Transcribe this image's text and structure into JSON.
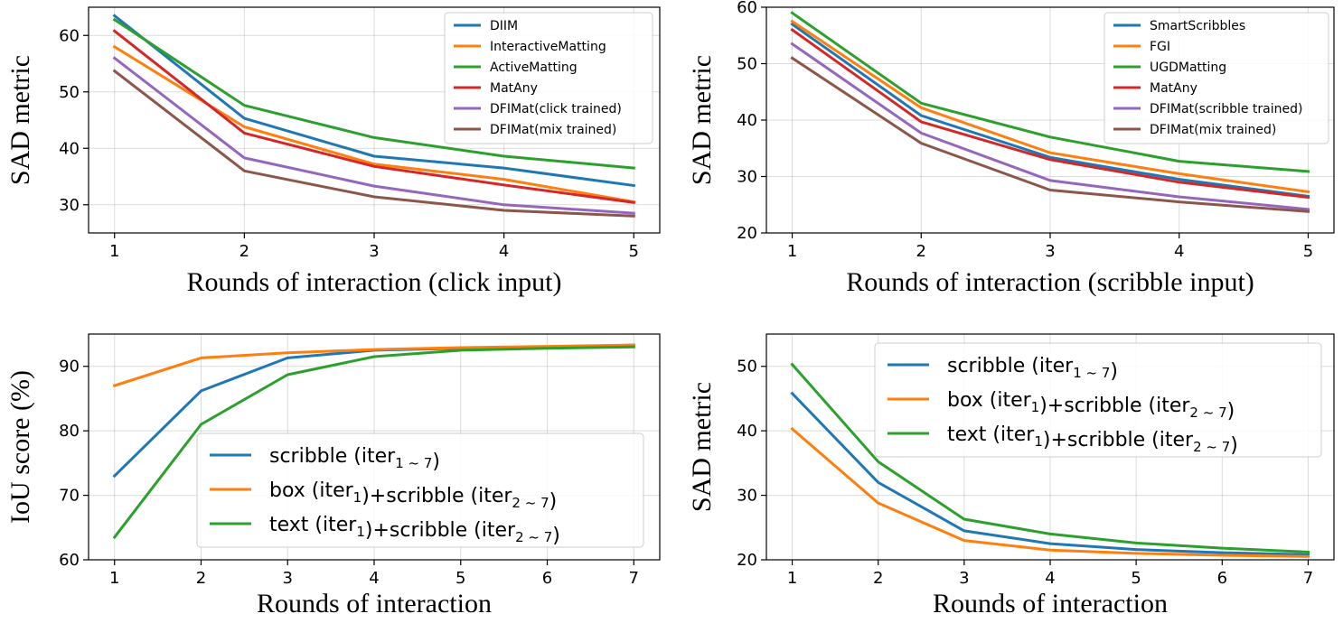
{
  "chart_data": [
    {
      "type": "line",
      "xlabel": "Rounds of interaction (click input)",
      "ylabel": "SAD metric",
      "x": [
        1,
        2,
        3,
        4,
        5
      ],
      "xlim": [
        0.8,
        5.2
      ],
      "ylim": [
        25,
        65
      ],
      "yticks": [
        30,
        40,
        50,
        60
      ],
      "grid": true,
      "legend_position": "top-right",
      "series": [
        {
          "name": "DIIM",
          "color": "#1f77b4",
          "values": [
            63.5,
            45.3,
            38.6,
            36.5,
            33.4
          ]
        },
        {
          "name": "InteractiveMatting",
          "color": "#ff7f0e",
          "values": [
            58.0,
            43.8,
            37.2,
            34.5,
            30.5
          ]
        },
        {
          "name": "ActiveMatting",
          "color": "#2ca02c",
          "values": [
            62.8,
            47.6,
            41.9,
            38.6,
            36.5
          ]
        },
        {
          "name": "MatAny",
          "color": "#d62728",
          "values": [
            60.8,
            42.7,
            36.8,
            33.5,
            30.4
          ]
        },
        {
          "name": "DFIMat(click trained)",
          "color": "#9467bd",
          "values": [
            56.0,
            38.3,
            33.3,
            30.0,
            28.5
          ]
        },
        {
          "name": "DFIMat(mix trained)",
          "color": "#8c564b",
          "values": [
            53.7,
            36.0,
            31.4,
            29.0,
            28.0
          ]
        }
      ]
    },
    {
      "type": "line",
      "xlabel": "Rounds of interaction (scribble input)",
      "ylabel": "SAD metric",
      "x": [
        1,
        2,
        3,
        4,
        5
      ],
      "xlim": [
        0.8,
        5.2
      ],
      "ylim": [
        20,
        60
      ],
      "yticks": [
        20,
        30,
        40,
        50,
        60
      ],
      "grid": true,
      "legend_position": "top-right",
      "series": [
        {
          "name": "SmartScribbles",
          "color": "#1f77b4",
          "values": [
            57.0,
            40.8,
            33.4,
            29.5,
            26.5
          ]
        },
        {
          "name": "FGI",
          "color": "#ff7f0e",
          "values": [
            57.5,
            42.2,
            34.2,
            30.5,
            27.3
          ]
        },
        {
          "name": "UGDMatting",
          "color": "#2ca02c",
          "values": [
            59.0,
            43.0,
            37.0,
            32.7,
            30.9
          ]
        },
        {
          "name": "MatAny",
          "color": "#d62728",
          "values": [
            56.0,
            39.7,
            33.0,
            29.0,
            26.3
          ]
        },
        {
          "name": "DFIMat(scribble trained)",
          "color": "#9467bd",
          "values": [
            53.5,
            37.7,
            29.3,
            26.4,
            24.2
          ]
        },
        {
          "name": "DFIMat(mix trained)",
          "color": "#8c564b",
          "values": [
            51.0,
            35.9,
            27.6,
            25.5,
            23.8
          ]
        }
      ]
    },
    {
      "type": "line",
      "xlabel": "Rounds of interaction",
      "ylabel": "IoU score (%)",
      "x": [
        1,
        2,
        3,
        4,
        5,
        6,
        7
      ],
      "xlim": [
        0.7,
        7.3
      ],
      "ylim": [
        60,
        95
      ],
      "yticks": [
        60,
        70,
        80,
        90
      ],
      "grid": true,
      "legend_position": "lower-right",
      "series": [
        {
          "name": "scribble (iter",
          "sub": "1 ~ 7",
          "tail": ")",
          "color": "#1f77b4",
          "values": [
            73.0,
            86.2,
            91.3,
            92.5,
            92.8,
            93.0,
            93.3
          ]
        },
        {
          "name": "box (iter",
          "sub": "1",
          "tail": ")+scribble (iter",
          "sub2": "2 ~ 7",
          "tail2": ")",
          "color": "#ff7f0e",
          "values": [
            87.0,
            91.3,
            92.1,
            92.6,
            92.9,
            93.1,
            93.3
          ]
        },
        {
          "name": "text (iter",
          "sub": "1",
          "tail": ")+scribble (iter",
          "sub2": "2 ~ 7",
          "tail2": ")",
          "color": "#2ca02c",
          "values": [
            63.5,
            81.0,
            88.7,
            91.5,
            92.5,
            92.8,
            93.0
          ]
        }
      ]
    },
    {
      "type": "line",
      "xlabel": "Rounds of interaction",
      "ylabel": "SAD metric",
      "x": [
        1,
        2,
        3,
        4,
        5,
        6,
        7
      ],
      "xlim": [
        0.7,
        7.3
      ],
      "ylim": [
        20,
        55
      ],
      "yticks": [
        20,
        30,
        40,
        50
      ],
      "grid": true,
      "legend_position": "top-right",
      "series": [
        {
          "name": "scribble (iter",
          "sub": "1 ~ 7",
          "tail": ")",
          "color": "#1f77b4",
          "values": [
            45.8,
            32.0,
            24.5,
            22.5,
            21.6,
            21.1,
            20.8
          ]
        },
        {
          "name": "box (iter",
          "sub": "1",
          "tail": ")+scribble (iter",
          "sub2": "2 ~ 7",
          "tail2": ")",
          "color": "#ff7f0e",
          "values": [
            40.3,
            28.8,
            23.0,
            21.5,
            21.0,
            20.7,
            20.5
          ]
        },
        {
          "name": "text (iter",
          "sub": "1",
          "tail": ")+scribble (iter",
          "sub2": "2 ~ 7",
          "tail2": ")",
          "color": "#2ca02c",
          "values": [
            50.3,
            35.2,
            26.3,
            24.0,
            22.6,
            21.8,
            21.2
          ]
        }
      ]
    }
  ]
}
